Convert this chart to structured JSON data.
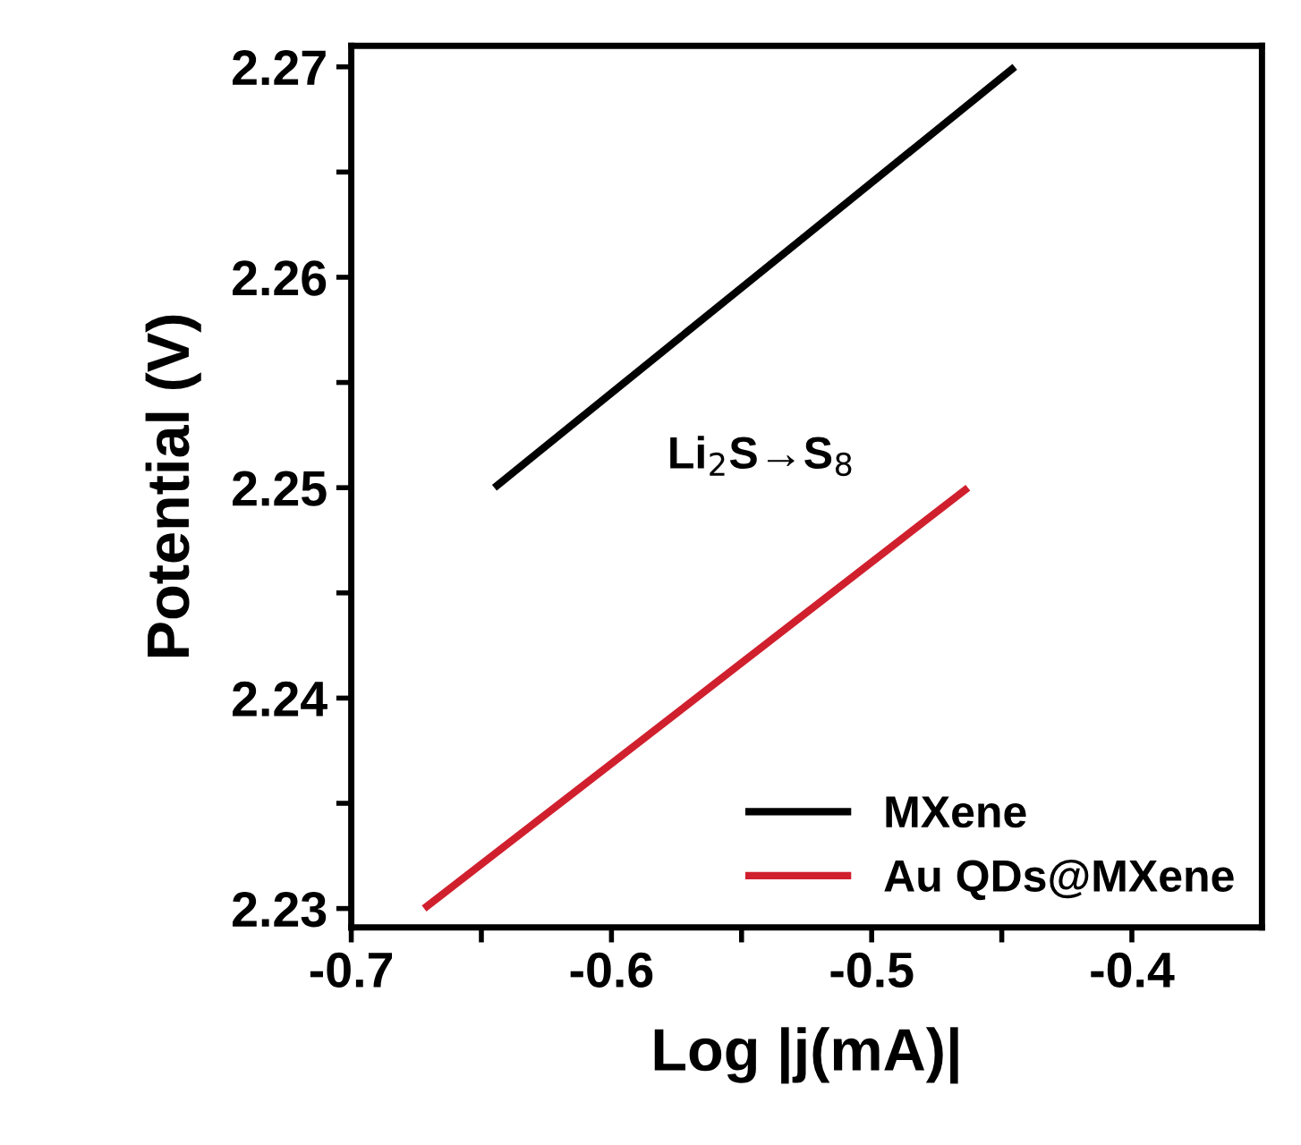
{
  "chart_data": {
    "type": "line",
    "xlabel": "Log |j(mA)|",
    "ylabel": "Potential (V)",
    "series": [
      {
        "name": "MXene",
        "color": "#000000",
        "x": [
          -0.645,
          -0.445
        ],
        "values": [
          2.25,
          2.27
        ]
      },
      {
        "name": "Au QDs@MXene",
        "color": "#d0202e",
        "x": [
          -0.672,
          -0.463
        ],
        "values": [
          2.23,
          2.25
        ]
      }
    ],
    "xlim": [
      -0.7,
      -0.35
    ],
    "ylim": [
      2.2291,
      2.271
    ],
    "xticks": [
      {
        "value": -0.7,
        "label": "-0.7"
      },
      {
        "value": -0.65,
        "label": null
      },
      {
        "value": -0.6,
        "label": "-0.6"
      },
      {
        "value": -0.55,
        "label": null
      },
      {
        "value": -0.5,
        "label": "-0.5"
      },
      {
        "value": -0.45,
        "label": null
      },
      {
        "value": -0.4,
        "label": "-0.4"
      }
    ],
    "yticks": [
      2.23,
      {
        "value": 2.235,
        "label": null
      },
      2.24,
      {
        "value": 2.245,
        "label": null
      },
      2.25,
      {
        "value": 2.255,
        "label": null
      },
      2.26,
      {
        "value": 2.265,
        "label": null
      },
      2.27
    ],
    "annotations": [
      "Li$_{2}$S→S$_{8}$"
    ],
    "legend": "bottom right",
    "grid": false,
    "marker": "none",
    "line_style": "solid"
  }
}
